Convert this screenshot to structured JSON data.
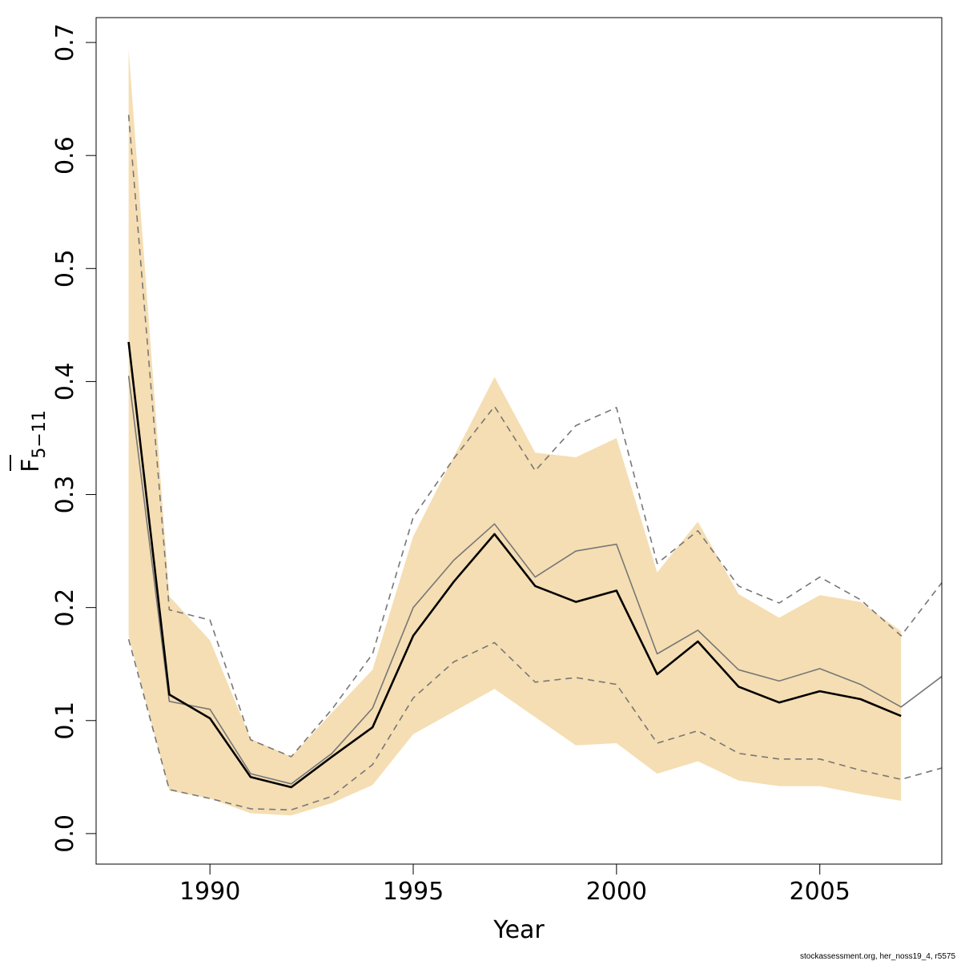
{
  "chart_data": {
    "type": "line",
    "xlabel": "Year",
    "ylabel_main": "F",
    "ylabel_sub": "5−11",
    "xlim": [
      1987.2,
      2008
    ],
    "ylim": [
      -0.027,
      0.722
    ],
    "x_ticks": [
      1990,
      1995,
      2000,
      2005
    ],
    "x_tick_labels": [
      "1990",
      "1995",
      "2000",
      "2005"
    ],
    "y_ticks": [
      0.0,
      0.1,
      0.2,
      0.3,
      0.4,
      0.5,
      0.6,
      0.7
    ],
    "y_tick_labels": [
      "0.0",
      "0.1",
      "0.2",
      "0.3",
      "0.4",
      "0.5",
      "0.6",
      "0.7"
    ],
    "grid": false,
    "band_color": "#f5deb3",
    "years": [
      1988,
      1989,
      1990,
      1991,
      1992,
      1993,
      1994,
      1995,
      1996,
      1997,
      1998,
      1999,
      2000,
      2001,
      2002,
      2003,
      2004,
      2005,
      2006,
      2007
    ],
    "band": {
      "upper": [
        0.694,
        0.21,
        0.171,
        0.084,
        0.068,
        0.107,
        0.145,
        0.263,
        0.334,
        0.404,
        0.337,
        0.333,
        0.35,
        0.231,
        0.276,
        0.212,
        0.191,
        0.211,
        0.205,
        0.179
      ],
      "lower": [
        0.175,
        0.038,
        0.031,
        0.018,
        0.016,
        0.027,
        0.043,
        0.088,
        0.108,
        0.128,
        0.103,
        0.078,
        0.08,
        0.053,
        0.064,
        0.047,
        0.042,
        0.042,
        0.035,
        0.029
      ]
    },
    "series": [
      {
        "role": "estimate",
        "color": "#000000",
        "dashed": false,
        "width": 2.6,
        "x": [
          1988,
          1989,
          1990,
          1991,
          1992,
          1993,
          1994,
          1995,
          1996,
          1997,
          1998,
          1999,
          2000,
          2001,
          2002,
          2003,
          2004,
          2005,
          2006,
          2007
        ],
        "values": [
          0.435,
          0.123,
          0.102,
          0.05,
          0.041,
          0.068,
          0.094,
          0.175,
          0.223,
          0.265,
          0.219,
          0.205,
          0.215,
          0.141,
          0.17,
          0.13,
          0.116,
          0.126,
          0.119,
          0.104
        ]
      },
      {
        "role": "comparison-estimate",
        "color": "#777777",
        "dashed": false,
        "width": 1.6,
        "x": [
          1988,
          1989,
          1990,
          1991,
          1992,
          1993,
          1994,
          1995,
          1996,
          1997,
          1998,
          1999,
          2000,
          2001,
          2002,
          2003,
          2004,
          2005,
          2006,
          2007,
          2008
        ],
        "values": [
          0.405,
          0.117,
          0.11,
          0.053,
          0.044,
          0.071,
          0.111,
          0.2,
          0.242,
          0.274,
          0.227,
          0.25,
          0.256,
          0.159,
          0.18,
          0.145,
          0.135,
          0.146,
          0.132,
          0.112,
          0.139
        ]
      },
      {
        "role": "comparison-upper",
        "color": "#777777",
        "dashed": true,
        "width": 1.6,
        "x": [
          1988,
          1989,
          1990,
          1991,
          1992,
          1993,
          1994,
          1995,
          1996,
          1997,
          1998,
          1999,
          2000,
          2001,
          2002,
          2003,
          2004,
          2005,
          2006,
          2007,
          2008
        ],
        "values": [
          0.636,
          0.198,
          0.189,
          0.083,
          0.068,
          0.11,
          0.159,
          0.28,
          0.332,
          0.378,
          0.321,
          0.361,
          0.377,
          0.239,
          0.268,
          0.219,
          0.204,
          0.227,
          0.207,
          0.175,
          0.222
        ]
      },
      {
        "role": "comparison-lower",
        "color": "#777777",
        "dashed": true,
        "width": 1.6,
        "x": [
          1988,
          1989,
          1990,
          1991,
          1992,
          1993,
          1994,
          1995,
          1996,
          1997,
          1998,
          1999,
          2000,
          2001,
          2002,
          2003,
          2004,
          2005,
          2006,
          2007,
          2008
        ],
        "values": [
          0.172,
          0.039,
          0.031,
          0.022,
          0.021,
          0.033,
          0.061,
          0.12,
          0.152,
          0.169,
          0.134,
          0.138,
          0.132,
          0.08,
          0.091,
          0.071,
          0.066,
          0.066,
          0.056,
          0.048,
          0.058
        ]
      }
    ]
  },
  "credit": "stockassessment.org, her_noss19_4, r5575"
}
